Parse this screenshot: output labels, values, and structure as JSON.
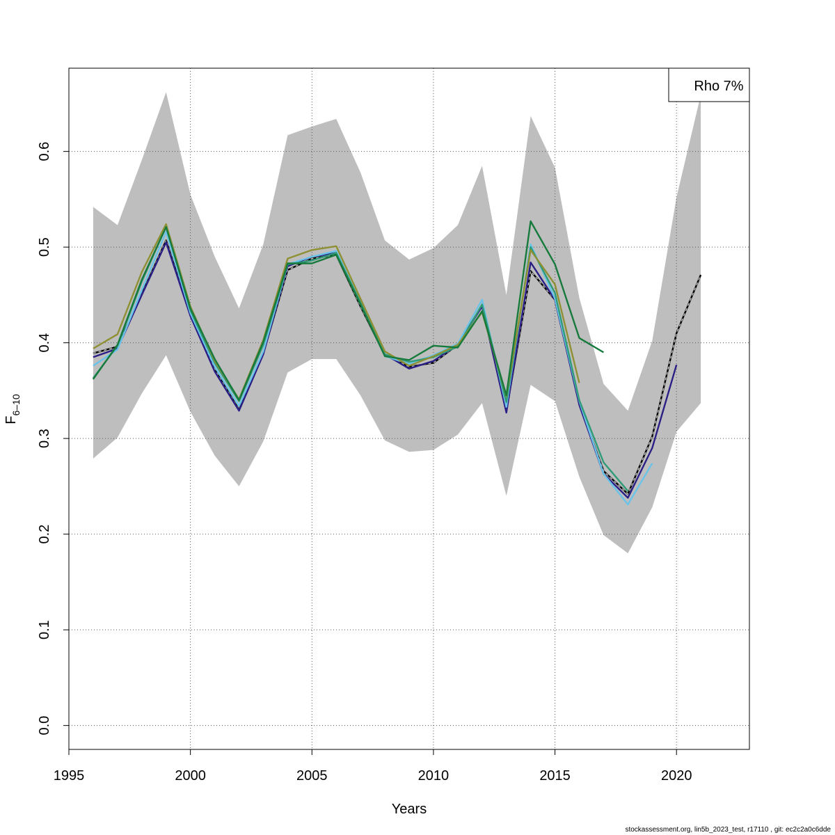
{
  "chart_data": {
    "type": "line",
    "xlabel": "Years",
    "ylabel": "F",
    "ylabel_sub": "6–10",
    "xlim": [
      1995,
      2023
    ],
    "ylim": [
      -0.025,
      0.687
    ],
    "x_ticks": [
      1995,
      2000,
      2005,
      2010,
      2015,
      2020
    ],
    "y_ticks": [
      0.0,
      0.1,
      0.2,
      0.3,
      0.4,
      0.5,
      0.6
    ],
    "x_tick_labels": [
      "1995",
      "2000",
      "2005",
      "2010",
      "2015",
      "2020"
    ],
    "y_tick_labels": [
      "0.0",
      "0.1",
      "0.2",
      "0.3",
      "0.4",
      "0.5",
      "0.6"
    ],
    "grid": true,
    "legend": {
      "position": "top-right",
      "text": "Rho 7%"
    },
    "confidence_band": {
      "color": "#bebebe",
      "x": [
        1996,
        1997,
        1998,
        1999,
        2000,
        2001,
        2002,
        2003,
        2004,
        2005,
        2006,
        2007,
        2008,
        2009,
        2010,
        2011,
        2012,
        2013,
        2014,
        2015,
        2016,
        2017,
        2018,
        2019,
        2020,
        2021
      ],
      "lower": [
        0.279,
        0.301,
        0.347,
        0.387,
        0.328,
        0.282,
        0.25,
        0.297,
        0.369,
        0.383,
        0.383,
        0.345,
        0.298,
        0.286,
        0.288,
        0.304,
        0.337,
        0.24,
        0.356,
        0.339,
        0.26,
        0.199,
        0.18,
        0.228,
        0.307,
        0.337
      ],
      "upper": [
        0.542,
        0.523,
        0.591,
        0.662,
        0.555,
        0.49,
        0.436,
        0.503,
        0.617,
        0.626,
        0.634,
        0.578,
        0.507,
        0.487,
        0.499,
        0.523,
        0.585,
        0.45,
        0.637,
        0.583,
        0.447,
        0.357,
        0.329,
        0.402,
        0.552,
        0.659
      ]
    },
    "series": [
      {
        "color": "#000000",
        "dashed": true,
        "dashColor": "#bebebe",
        "x": [
          1996,
          1997,
          1998,
          1999,
          2000,
          2001,
          2002,
          2003,
          2004,
          2005,
          2006,
          2007,
          2008,
          2009,
          2010,
          2011,
          2012,
          2013,
          2014,
          2015,
          2016,
          2017,
          2018,
          2019,
          2020,
          2021
        ],
        "values": [
          0.389,
          0.396,
          0.451,
          0.507,
          0.429,
          0.372,
          0.33,
          0.389,
          0.476,
          0.488,
          0.492,
          0.438,
          0.387,
          0.375,
          0.379,
          0.398,
          0.439,
          0.329,
          0.475,
          0.445,
          0.336,
          0.266,
          0.242,
          0.302,
          0.41,
          0.471
        ]
      },
      {
        "color": "#2b1f86",
        "dashed": false,
        "x": [
          1996,
          1997,
          1998,
          1999,
          2000,
          2001,
          2002,
          2003,
          2004,
          2005,
          2006,
          2007,
          2008,
          2009,
          2010,
          2011,
          2012,
          2013,
          2014,
          2015,
          2016,
          2017,
          2018,
          2019,
          2020
        ],
        "values": [
          0.385,
          0.394,
          0.45,
          0.505,
          0.428,
          0.37,
          0.329,
          0.388,
          0.48,
          0.49,
          0.494,
          0.44,
          0.388,
          0.373,
          0.381,
          0.398,
          0.438,
          0.327,
          0.484,
          0.445,
          0.335,
          0.263,
          0.238,
          0.29,
          0.377
        ]
      },
      {
        "color": "#6ac3e8",
        "dashed": false,
        "x": [
          1996,
          1997,
          1998,
          1999,
          2000,
          2001,
          2002,
          2003,
          2004,
          2005,
          2006,
          2007,
          2008,
          2009,
          2010,
          2011,
          2012,
          2013,
          2014,
          2015,
          2016,
          2017,
          2018,
          2019
        ],
        "values": [
          0.376,
          0.393,
          0.455,
          0.516,
          0.431,
          0.375,
          0.334,
          0.391,
          0.482,
          0.49,
          0.496,
          0.442,
          0.386,
          0.378,
          0.387,
          0.399,
          0.445,
          0.333,
          0.503,
          0.446,
          0.339,
          0.263,
          0.231,
          0.274
        ]
      },
      {
        "color": "#2f9b78",
        "dashed": false,
        "x": [
          1996,
          1997,
          1998,
          1999,
          2000,
          2001,
          2002,
          2003,
          2004,
          2005,
          2006,
          2007,
          2008,
          2009,
          2010,
          2011,
          2012,
          2013,
          2014,
          2015,
          2016,
          2017,
          2018
        ],
        "values": [
          0.363,
          0.397,
          0.464,
          0.522,
          0.434,
          0.379,
          0.339,
          0.398,
          0.482,
          0.486,
          0.494,
          0.442,
          0.388,
          0.38,
          0.385,
          0.396,
          0.44,
          0.338,
          0.5,
          0.452,
          0.34,
          0.275,
          0.245
        ]
      },
      {
        "color": "#8f9033",
        "dashed": false,
        "x": [
          1996,
          1997,
          1998,
          1999,
          2000,
          2001,
          2002,
          2003,
          2004,
          2005,
          2006,
          2007,
          2008,
          2009,
          2010,
          2011,
          2012,
          2013,
          2014,
          2015,
          2016
        ],
        "values": [
          0.394,
          0.409,
          0.474,
          0.524,
          0.438,
          0.381,
          0.341,
          0.403,
          0.488,
          0.497,
          0.501,
          0.446,
          0.391,
          0.376,
          0.386,
          0.398,
          0.432,
          0.344,
          0.497,
          0.461,
          0.358
        ]
      },
      {
        "color": "#177a3d",
        "dashed": false,
        "x": [
          1996,
          1997,
          1998,
          1999,
          2000,
          2001,
          2002,
          2003,
          2004,
          2005,
          2006,
          2007,
          2008,
          2009,
          2010,
          2011,
          2012,
          2013,
          2014,
          2015,
          2016,
          2017
        ],
        "values": [
          0.362,
          0.398,
          0.466,
          0.521,
          0.436,
          0.383,
          0.34,
          0.401,
          0.483,
          0.483,
          0.492,
          0.44,
          0.386,
          0.382,
          0.397,
          0.395,
          0.433,
          0.345,
          0.527,
          0.482,
          0.405,
          0.39
        ]
      }
    ]
  },
  "footer": "stockassessment.org, lin5b_2023_test, r17110 , git: ec2c2a0c6dde"
}
